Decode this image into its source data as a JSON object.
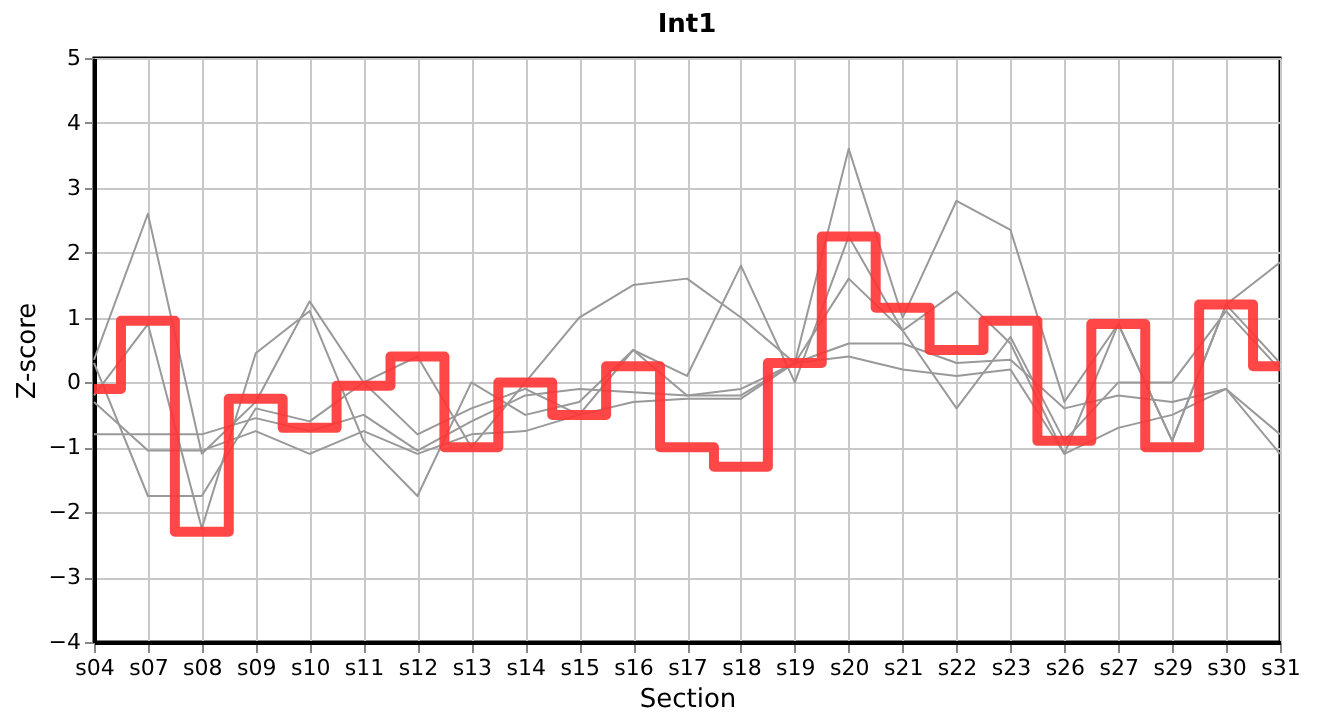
{
  "chart_data": {
    "type": "line",
    "title": "Int1",
    "xlabel": "Section",
    "ylabel": "Z-score",
    "categories": [
      "s04",
      "s07",
      "s08",
      "s09",
      "s10",
      "s11",
      "s12",
      "s13",
      "s14",
      "s15",
      "s16",
      "s17",
      "s18",
      "s19",
      "s20",
      "s21",
      "s22",
      "s23",
      "s26",
      "s27",
      "s29",
      "s30",
      "s31"
    ],
    "series": [
      {
        "color": "#999999",
        "values": [
          0.35,
          2.6,
          -1.1,
          -0.3,
          1.25,
          0.0,
          0.4,
          -1.0,
          0.0,
          1.0,
          1.5,
          1.6,
          1.0,
          0.3,
          3.6,
          1.0,
          2.8,
          2.35,
          -0.3,
          0.9,
          -0.9,
          1.2,
          1.85
        ]
      },
      {
        "color": "#999999",
        "values": [
          -0.2,
          0.9,
          -2.25,
          0.45,
          1.1,
          -0.9,
          -1.75,
          0.0,
          -0.5,
          -0.3,
          0.5,
          0.1,
          1.8,
          0.0,
          2.25,
          0.8,
          1.4,
          0.6,
          -1.1,
          0.9,
          -0.9,
          1.2,
          0.3
        ]
      },
      {
        "color": "#999999",
        "values": [
          0.3,
          -1.75,
          -1.75,
          -0.4,
          -0.6,
          0.0,
          -0.8,
          -0.4,
          -0.1,
          -0.5,
          0.5,
          -0.2,
          -0.1,
          0.3,
          1.6,
          0.8,
          -0.4,
          0.7,
          -0.9,
          0.0,
          0.0,
          1.1,
          0.2
        ]
      },
      {
        "color": "#999999",
        "values": [
          -0.8,
          -0.8,
          -0.8,
          -0.55,
          -0.75,
          -0.5,
          -1.05,
          -0.6,
          -0.2,
          -0.1,
          -0.15,
          -0.2,
          -0.2,
          0.3,
          0.6,
          0.6,
          0.3,
          0.35,
          -0.4,
          -0.2,
          -0.3,
          -0.1,
          -0.8
        ]
      },
      {
        "color": "#999999",
        "values": [
          -0.3,
          -1.05,
          -1.05,
          -0.75,
          -1.1,
          -0.75,
          -1.1,
          -0.8,
          -0.75,
          -0.5,
          -0.3,
          -0.25,
          -0.25,
          0.3,
          0.4,
          0.2,
          0.1,
          0.2,
          -1.1,
          -0.7,
          -0.5,
          -0.1,
          -1.1
        ]
      },
      {
        "type": "step",
        "color": "#ff3333",
        "values": [
          -0.1,
          0.95,
          -2.3,
          -0.25,
          -0.7,
          -0.05,
          0.4,
          -1.0,
          0.0,
          -0.5,
          0.25,
          -1.0,
          -1.3,
          0.3,
          2.25,
          1.15,
          0.5,
          0.95,
          -0.9,
          0.9,
          -1.0,
          1.2,
          0.25
        ]
      }
    ],
    "ylim": [
      -4,
      5
    ],
    "yticks": [
      -4,
      -3,
      -2,
      -1,
      0,
      1,
      2,
      3,
      4,
      5
    ],
    "grid": true
  }
}
